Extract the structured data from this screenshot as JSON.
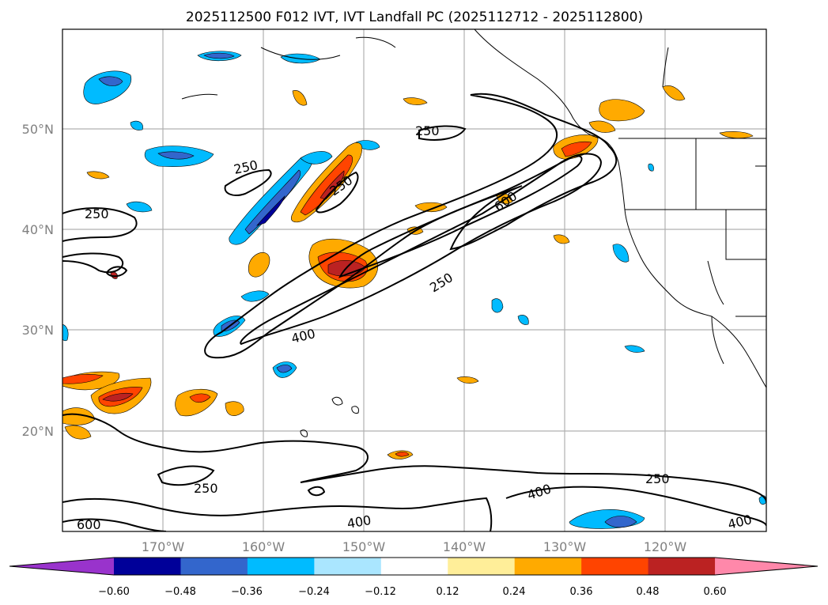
{
  "title": "2025112500 F012 IVT, IVT Landfall PC (2025112712 - 2025112800)",
  "lat_ticks": [
    "50°N",
    "40°N",
    "30°N",
    "20°N"
  ],
  "lon_ticks": [
    "170°W",
    "160°W",
    "150°W",
    "140°W",
    "130°W",
    "120°W"
  ],
  "colorbar": {
    "colors": [
      "#9933cc",
      "#000099",
      "#3366cc",
      "#00bbff",
      "#aae6ff",
      "#ffffff",
      "#ffee99",
      "#ffaa00",
      "#ff4400",
      "#bb2222",
      "#ff88aa"
    ],
    "ticks": [
      "−0.60",
      "−0.48",
      "−0.36",
      "−0.24",
      "−0.12",
      "0.12",
      "0.24",
      "0.36",
      "0.48",
      "0.60"
    ]
  },
  "contour_labels": [
    "250",
    "250",
    "250",
    "250",
    "250",
    "400",
    "600",
    "250",
    "250",
    "400",
    "400",
    "600"
  ]
}
